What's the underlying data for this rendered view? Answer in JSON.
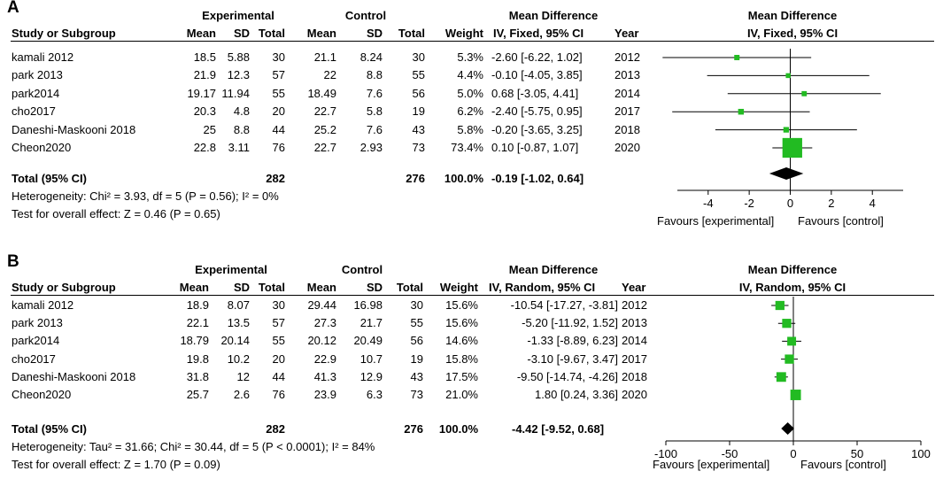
{
  "chart_data": [
    {
      "type": "forest",
      "panel_label": "A",
      "headers": {
        "group_experimental": "Experimental",
        "group_control": "Control",
        "mean_difference": "Mean Difference",
        "study": "Study or Subgroup",
        "mean": "Mean",
        "sd": "SD",
        "total": "Total",
        "weight": "Weight",
        "method": "IV, Fixed, 95% CI",
        "year": "Year",
        "plot_title": "Mean Difference",
        "plot_method": "IV, Fixed, 95% CI"
      },
      "studies": [
        {
          "name": "kamali 2012",
          "e_mean": "18.5",
          "e_sd": "5.88",
          "e_total": "30",
          "c_mean": "21.1",
          "c_sd": "8.24",
          "c_total": "30",
          "weight": "5.3%",
          "ci_text": "-2.60 [-6.22, 1.02]",
          "year": "2012",
          "md": -2.6,
          "lo": -6.22,
          "hi": 1.02,
          "w": 5.3
        },
        {
          "name": "park 2013",
          "e_mean": "21.9",
          "e_sd": "12.3",
          "e_total": "57",
          "c_mean": "22",
          "c_sd": "8.8",
          "c_total": "55",
          "weight": "4.4%",
          "ci_text": "-0.10 [-4.05, 3.85]",
          "year": "2013",
          "md": -0.1,
          "lo": -4.05,
          "hi": 3.85,
          "w": 4.4
        },
        {
          "name": "park2014",
          "e_mean": "19.17",
          "e_sd": "11.94",
          "e_total": "55",
          "c_mean": "18.49",
          "c_sd": "7.6",
          "c_total": "56",
          "weight": "5.0%",
          "ci_text": "0.68 [-3.05, 4.41]",
          "year": "2014",
          "md": 0.68,
          "lo": -3.05,
          "hi": 4.41,
          "w": 5.0
        },
        {
          "name": "cho2017",
          "e_mean": "20.3",
          "e_sd": "4.8",
          "e_total": "20",
          "c_mean": "22.7",
          "c_sd": "5.8",
          "c_total": "19",
          "weight": "6.2%",
          "ci_text": "-2.40 [-5.75, 0.95]",
          "year": "2017",
          "md": -2.4,
          "lo": -5.75,
          "hi": 0.95,
          "w": 6.2
        },
        {
          "name": "Daneshi-Maskooni 2018",
          "e_mean": "25",
          "e_sd": "8.8",
          "e_total": "44",
          "c_mean": "25.2",
          "c_sd": "7.6",
          "c_total": "43",
          "weight": "5.8%",
          "ci_text": "-0.20 [-3.65, 3.25]",
          "year": "2018",
          "md": -0.2,
          "lo": -3.65,
          "hi": 3.25,
          "w": 5.8
        },
        {
          "name": "Cheon2020",
          "e_mean": "22.8",
          "e_sd": "3.11",
          "e_total": "76",
          "c_mean": "22.7",
          "c_sd": "2.93",
          "c_total": "73",
          "weight": "73.4%",
          "ci_text": "0.10 [-0.87, 1.07]",
          "year": "2020",
          "md": 0.1,
          "lo": -0.87,
          "hi": 1.07,
          "w": 73.4
        }
      ],
      "total": {
        "label": "Total (95% CI)",
        "e_total": "282",
        "c_total": "276",
        "weight": "100.0%",
        "ci_text": "-0.19 [-1.02, 0.64]",
        "md": -0.19,
        "lo": -1.02,
        "hi": 0.64
      },
      "heterogeneity": "Heterogeneity: Chi² = 3.93, df = 5 (P = 0.56); I² = 0%",
      "overall_effect": "Test for overall effect: Z = 0.46 (P = 0.65)",
      "axis": {
        "range": [
          -5.5,
          5.5
        ],
        "ticks": [
          -4,
          -2,
          0,
          2,
          4
        ],
        "tick_labels": [
          "-4",
          "-2",
          "0",
          "2",
          "4"
        ]
      },
      "favours_left": "Favours [experimental]",
      "favours_right": "Favours [control]"
    },
    {
      "type": "forest",
      "panel_label": "B",
      "headers": {
        "group_experimental": "Experimental",
        "group_control": "Control",
        "mean_difference": "Mean Difference",
        "study": "Study or Subgroup",
        "mean": "Mean",
        "sd": "SD",
        "total": "Total",
        "weight": "Weight",
        "method": "IV, Random, 95% CI",
        "year": "Year",
        "plot_title": "Mean Difference",
        "plot_method": "IV, Random, 95% CI"
      },
      "studies": [
        {
          "name": "kamali 2012",
          "e_mean": "18.9",
          "e_sd": "8.07",
          "e_total": "30",
          "c_mean": "29.44",
          "c_sd": "16.98",
          "c_total": "30",
          "weight": "15.6%",
          "ci_text": "-10.54 [-17.27, -3.81]",
          "year": "2012",
          "md": -10.54,
          "lo": -17.27,
          "hi": -3.81,
          "w": 15.6
        },
        {
          "name": "park 2013",
          "e_mean": "22.1",
          "e_sd": "13.5",
          "e_total": "57",
          "c_mean": "27.3",
          "c_sd": "21.7",
          "c_total": "55",
          "weight": "15.6%",
          "ci_text": "-5.20 [-11.92, 1.52]",
          "year": "2013",
          "md": -5.2,
          "lo": -11.92,
          "hi": 1.52,
          "w": 15.6
        },
        {
          "name": "park2014",
          "e_mean": "18.79",
          "e_sd": "20.14",
          "e_total": "55",
          "c_mean": "20.12",
          "c_sd": "20.49",
          "c_total": "56",
          "weight": "14.6%",
          "ci_text": "-1.33 [-8.89, 6.23]",
          "year": "2014",
          "md": -1.33,
          "lo": -8.89,
          "hi": 6.23,
          "w": 14.6
        },
        {
          "name": "cho2017",
          "e_mean": "19.8",
          "e_sd": "10.2",
          "e_total": "20",
          "c_mean": "22.9",
          "c_sd": "10.7",
          "c_total": "19",
          "weight": "15.8%",
          "ci_text": "-3.10 [-9.67, 3.47]",
          "year": "2017",
          "md": -3.1,
          "lo": -9.67,
          "hi": 3.47,
          "w": 15.8
        },
        {
          "name": "Daneshi-Maskooni 2018",
          "e_mean": "31.8",
          "e_sd": "12",
          "e_total": "44",
          "c_mean": "41.3",
          "c_sd": "12.9",
          "c_total": "43",
          "weight": "17.5%",
          "ci_text": "-9.50 [-14.74, -4.26]",
          "year": "2018",
          "md": -9.5,
          "lo": -14.74,
          "hi": -4.26,
          "w": 17.5
        },
        {
          "name": "Cheon2020",
          "e_mean": "25.7",
          "e_sd": "2.6",
          "e_total": "76",
          "c_mean": "23.9",
          "c_sd": "6.3",
          "c_total": "73",
          "weight": "21.0%",
          "ci_text": "1.80 [0.24, 3.36]",
          "year": "2020",
          "md": 1.8,
          "lo": 0.24,
          "hi": 3.36,
          "w": 21.0
        }
      ],
      "total": {
        "label": "Total (95% CI)",
        "e_total": "282",
        "c_total": "276",
        "weight": "100.0%",
        "ci_text": "-4.42 [-9.52, 0.68]",
        "md": -4.42,
        "lo": -9.52,
        "hi": 0.68
      },
      "heterogeneity": "Heterogeneity: Tau² = 31.66; Chi² = 30.44, df = 5 (P < 0.0001); I² = 84%",
      "overall_effect": "Test for overall effect: Z = 1.70 (P = 0.09)",
      "axis": {
        "range": [
          -100,
          100
        ],
        "ticks": [
          -100,
          -50,
          0,
          50,
          100
        ],
        "tick_labels": [
          "-100",
          "-50",
          "0",
          "50",
          "100"
        ]
      },
      "favours_left": "Favours [experimental]",
      "favours_right": "Favours [control]"
    }
  ]
}
